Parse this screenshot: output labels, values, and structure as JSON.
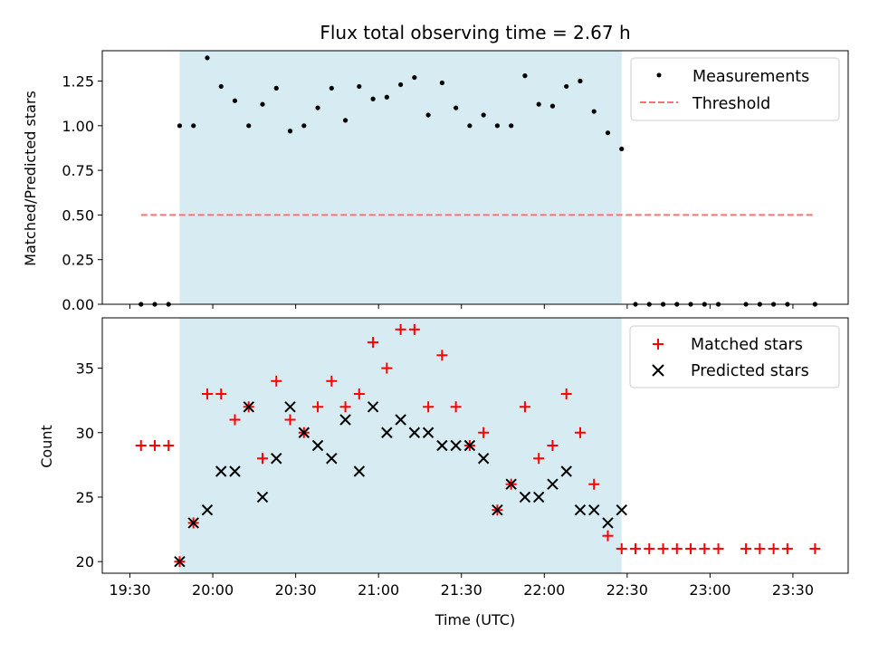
{
  "chart_data": [
    {
      "type": "scatter",
      "title": "Flux total observing time = 2.67 h",
      "ylabel": "Matched/Predicted stars",
      "xlabel": "",
      "x_unit": "time",
      "xlim": [
        "19:20",
        "23:50"
      ],
      "ylim": [
        0,
        1.42
      ],
      "yticks": [
        0.0,
        0.25,
        0.5,
        0.75,
        1.0,
        1.25
      ],
      "ytick_labels": [
        "0.00",
        "0.25",
        "0.50",
        "0.75",
        "1.00",
        "1.25"
      ],
      "shaded_region": {
        "x_start": "19:48",
        "x_end": "22:28",
        "color": "#add8e6"
      },
      "series": [
        {
          "name": "Measurements",
          "marker": "dot",
          "color": "#000000",
          "x": [
            "19:34",
            "19:39",
            "19:44",
            "19:48",
            "19:53",
            "19:58",
            "20:03",
            "20:08",
            "20:13",
            "20:18",
            "20:23",
            "20:28",
            "20:33",
            "20:38",
            "20:43",
            "20:48",
            "20:53",
            "20:58",
            "21:03",
            "21:08",
            "21:13",
            "21:18",
            "21:23",
            "21:28",
            "21:33",
            "21:38",
            "21:43",
            "21:48",
            "21:53",
            "21:58",
            "22:03",
            "22:08",
            "22:13",
            "22:18",
            "22:23",
            "22:28",
            "22:33",
            "22:38",
            "22:43",
            "22:48",
            "22:53",
            "22:58",
            "23:03",
            "23:13",
            "23:18",
            "23:23",
            "23:28",
            "23:38"
          ],
          "y": [
            0,
            0,
            0,
            1.0,
            1.0,
            1.38,
            1.22,
            1.14,
            1.0,
            1.12,
            1.21,
            0.97,
            1.0,
            1.1,
            1.21,
            1.03,
            1.22,
            1.15,
            1.16,
            1.23,
            1.27,
            1.06,
            1.24,
            1.1,
            1.0,
            1.06,
            1.0,
            1.0,
            1.28,
            1.12,
            1.11,
            1.22,
            1.25,
            1.08,
            0.96,
            0.87,
            0,
            0,
            0,
            0,
            0,
            0,
            0,
            0,
            0,
            0,
            0,
            0
          ]
        },
        {
          "name": "Threshold",
          "type": "line",
          "style": "dashed",
          "color": "#ff7070",
          "x": [
            "19:34",
            "23:38"
          ],
          "y": [
            0.5,
            0.5
          ]
        }
      ],
      "legend": "top-right"
    },
    {
      "type": "scatter",
      "title": "",
      "ylabel": "Count",
      "xlabel": "Time (UTC)",
      "xlim": [
        "19:20",
        "23:50"
      ],
      "ylim": [
        19.1,
        38.9
      ],
      "yticks": [
        20,
        25,
        30,
        35
      ],
      "ytick_labels": [
        "20",
        "25",
        "30",
        "35"
      ],
      "xticks": [
        "19:30",
        "20:00",
        "20:30",
        "21:00",
        "21:30",
        "22:00",
        "22:30",
        "23:00",
        "23:30"
      ],
      "xtick_labels": [
        "19:30",
        "20:00",
        "20:30",
        "21:00",
        "21:30",
        "22:00",
        "22:30",
        "23:00",
        "23:30"
      ],
      "shaded_region": {
        "x_start": "19:48",
        "x_end": "22:28",
        "color": "#add8e6"
      },
      "series": [
        {
          "name": "Matched stars",
          "marker": "plus",
          "color": "#ff0000",
          "x": [
            "19:34",
            "19:39",
            "19:44",
            "19:48",
            "19:53",
            "19:58",
            "20:03",
            "20:08",
            "20:13",
            "20:18",
            "20:23",
            "20:28",
            "20:33",
            "20:38",
            "20:43",
            "20:48",
            "20:53",
            "20:58",
            "21:03",
            "21:08",
            "21:13",
            "21:18",
            "21:23",
            "21:28",
            "21:33",
            "21:38",
            "21:43",
            "21:48",
            "21:53",
            "21:58",
            "22:03",
            "22:08",
            "22:13",
            "22:18",
            "22:23",
            "22:28",
            "22:33",
            "22:38",
            "22:43",
            "22:48",
            "22:53",
            "22:58",
            "23:03",
            "23:13",
            "23:18",
            "23:23",
            "23:28",
            "23:38"
          ],
          "y": [
            29,
            29,
            29,
            20,
            23,
            33,
            33,
            31,
            32,
            28,
            34,
            31,
            30,
            32,
            34,
            32,
            33,
            37,
            35,
            38,
            38,
            32,
            36,
            32,
            29,
            30,
            24,
            26,
            32,
            28,
            29,
            33,
            30,
            26,
            22,
            21,
            21,
            21,
            21,
            21,
            21,
            21,
            21,
            21,
            21,
            21,
            21,
            21
          ]
        },
        {
          "name": "Predicted stars",
          "marker": "x",
          "color": "#000000",
          "x": [
            "19:48",
            "19:53",
            "19:58",
            "20:03",
            "20:08",
            "20:13",
            "20:18",
            "20:23",
            "20:28",
            "20:33",
            "20:38",
            "20:43",
            "20:48",
            "20:53",
            "20:58",
            "21:03",
            "21:08",
            "21:13",
            "21:18",
            "21:23",
            "21:28",
            "21:33",
            "21:38",
            "21:43",
            "21:48",
            "21:53",
            "21:58",
            "22:03",
            "22:08",
            "22:13",
            "22:18",
            "22:23",
            "22:28"
          ],
          "y": [
            20,
            23,
            24,
            27,
            27,
            32,
            25,
            28,
            32,
            30,
            29,
            28,
            31,
            27,
            32,
            30,
            31,
            30,
            30,
            29,
            29,
            29,
            28,
            24,
            26,
            25,
            25,
            26,
            27,
            24,
            24,
            23,
            24
          ]
        }
      ],
      "legend": "top-right"
    }
  ]
}
